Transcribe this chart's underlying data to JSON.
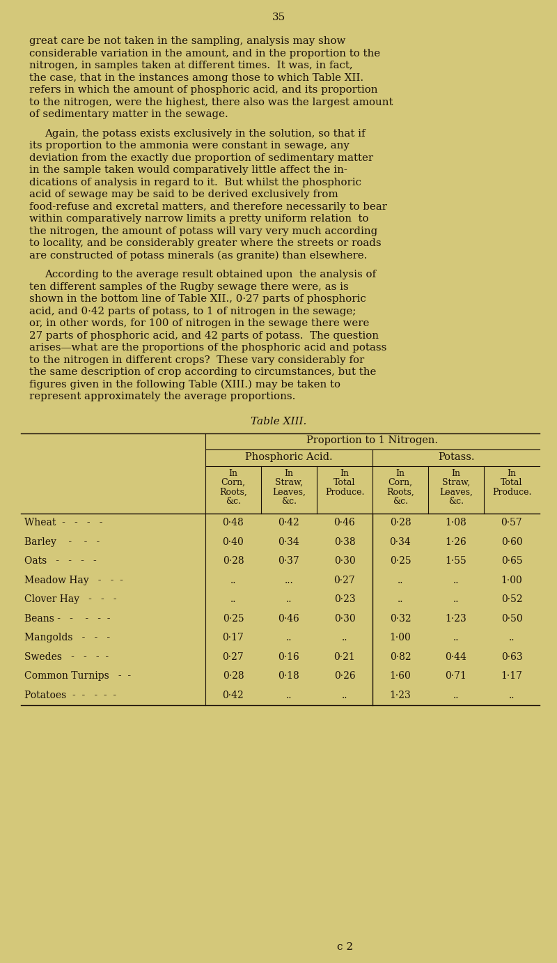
{
  "background_color": "#d4c87a",
  "page_number": "35",
  "text_color": "#1a1008",
  "para1_lines": [
    "great care be not taken in the sampling, analysis may show",
    "considerable variation in the amount, and in the proportion to the",
    "nitrogen, in samples taken at different times.  It was, in fact,",
    "the case, that in the instances among those to which Table XII.",
    "refers in which the amount of phosphoric acid, and its proportion",
    "to the nitrogen, were the highest, there also was the largest amount",
    "of sedimentary matter in the sewage."
  ],
  "para2_lines": [
    "Again, the potass exists exclusively in the solution, so that if",
    "its proportion to the ammonia were constant in sewage, any",
    "deviation from the exactly due proportion of sedimentary matter",
    "in the sample taken would comparatively little affect the in-",
    "dications of analysis in regard to it.  But whilst the phosphoric",
    "acid of sewage may be said to be derived exclusively from",
    "food-refuse and excretal matters, and therefore necessarily to bear",
    "within comparatively narrow limits a pretty uniform relation  to",
    "the nitrogen, the amount of potass will vary very much according",
    "to locality, and be considerably greater where the streets or roads",
    "are constructed of potass minerals (as granite) than elsewhere."
  ],
  "para3_lines": [
    "According to the average result obtained upon  the analysis of",
    "ten different samples of the Rugby sewage there were, as is",
    "shown in the bottom line of Table XII., 0·27 parts of phosphoric",
    "acid, and 0·42 parts of potass, to 1 of nitrogen in the sewage;",
    "or, in other words, for 100 of nitrogen in the sewage there were",
    "27 parts of phosphoric acid, and 42 parts of potass.  The question",
    "arises—what are the proportions of the phosphoric acid and potass",
    "to the nitrogen in different crops?  These vary considerably for",
    "the same description of crop according to circumstances, but the",
    "figures given in the following Table (XIII.) may be taken to",
    "represent approximately the average proportions."
  ],
  "table_title": "Table XIII.",
  "col_headers_sub": [
    "In\nCorn,\nRoots,\n&c.",
    "In\nStraw,\nLeaves,\n&c.",
    "In\nTotal\nProduce.",
    "In\nCorn,\nRoots,\n&c.",
    "In\nStraw,\nLeaves,\n&c.",
    "In\nTotal\nProduce."
  ],
  "rows": [
    [
      "Wheat  -   -   -   -",
      "0·48",
      "0·42",
      "0·46",
      "0·28",
      "1·08",
      "0·57"
    ],
    [
      "Barley    -    -   -",
      "0·40",
      "0·34",
      "0·38",
      "0·34",
      "1·26",
      "0·60"
    ],
    [
      "Oats   -   -   -   -",
      "0·28",
      "0·37",
      "0·30",
      "0·25",
      "1·55",
      "0·65"
    ],
    [
      "Meadow Hay   -   -  -",
      "..",
      "...",
      "0·27",
      "..",
      "..",
      "1·00"
    ],
    [
      "Clover Hay   -   -   -",
      "..",
      "..",
      "0·23",
      "..",
      "..",
      "0·52"
    ],
    [
      "Beans -   -    -   -  -",
      "0·25",
      "0·46",
      "0·30",
      "0·32",
      "1·23",
      "0·50"
    ],
    [
      "Mangolds   -   -   -",
      "0·17",
      "..",
      "..",
      "1·00",
      "..",
      ".."
    ],
    [
      "Swedes   -   -   -  -",
      "0·27",
      "0·16",
      "0·21",
      "0·82",
      "0·44",
      "0·63"
    ],
    [
      "Common Turnips   -  -",
      "0·28",
      "0·18",
      "0·26",
      "1·60",
      "0·71",
      "1·17"
    ],
    [
      "Potatoes  -  -   -  -  -",
      "0·42",
      "..",
      "..",
      "1·23",
      "..",
      ".."
    ]
  ],
  "footer": "c 2"
}
